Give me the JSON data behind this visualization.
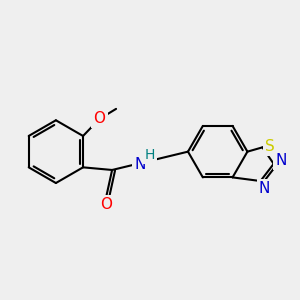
{
  "bg_color": "#efefef",
  "bond_color": "#000000",
  "bond_width": 1.5,
  "atom_colors": {
    "O": "#ff0000",
    "N": "#0000cd",
    "S": "#cccc00",
    "H": "#008080",
    "C": "#000000"
  },
  "fig_size": [
    3.0,
    3.0
  ],
  "dpi": 100,
  "xlim": [
    0.5,
    9.5
  ],
  "ylim": [
    3.0,
    7.5
  ]
}
